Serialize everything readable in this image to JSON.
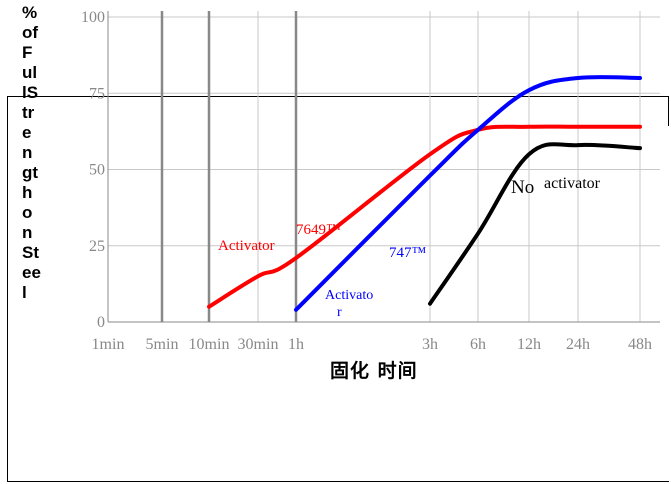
{
  "chart_data": {
    "type": "line",
    "ylabel": "% of Full Strength on Steel",
    "xlabel": "固化  时间",
    "ylim": [
      0,
      100
    ],
    "y_ticks": [
      "0",
      "25",
      "50",
      "75",
      "100"
    ],
    "x_categories": [
      "1min",
      "5min",
      "10min",
      "30min",
      "1h",
      "3h",
      "6h",
      "12h",
      "24h",
      "48h"
    ],
    "grid": true,
    "series": [
      {
        "color": "#ff0000",
        "points": [
          [
            "10min",
            5
          ],
          [
            "30min",
            15
          ],
          [
            "1h",
            21
          ],
          [
            "3h",
            55
          ],
          [
            "6h",
            63
          ],
          [
            "12h",
            64
          ],
          [
            "24h",
            64
          ],
          [
            "48h",
            64
          ]
        ]
      },
      {
        "color": "#0000ff",
        "points": [
          [
            "1h",
            4
          ],
          [
            "3h",
            48
          ],
          [
            "6h",
            63
          ],
          [
            "12h",
            76
          ],
          [
            "24h",
            80
          ],
          [
            "48h",
            80
          ]
        ]
      },
      {
        "color": "#000000",
        "points": [
          [
            "3h",
            6
          ],
          [
            "6h",
            29
          ],
          [
            "12h",
            55
          ],
          [
            "24h",
            58
          ],
          [
            "48h",
            57
          ]
        ]
      }
    ],
    "annotations": [
      {
        "text": "Activator",
        "color": "#ff0000"
      },
      {
        "text": "7649™",
        "color": "#ff0000"
      },
      {
        "text": "747™",
        "color": "#0000ff"
      },
      {
        "text": "Activato",
        "color": "#0000ff"
      },
      {
        "text": "r",
        "color": "#0000ff"
      },
      {
        "text": "No",
        "color": "#000000"
      },
      {
        "text": "activator",
        "color": "#000000"
      }
    ]
  }
}
